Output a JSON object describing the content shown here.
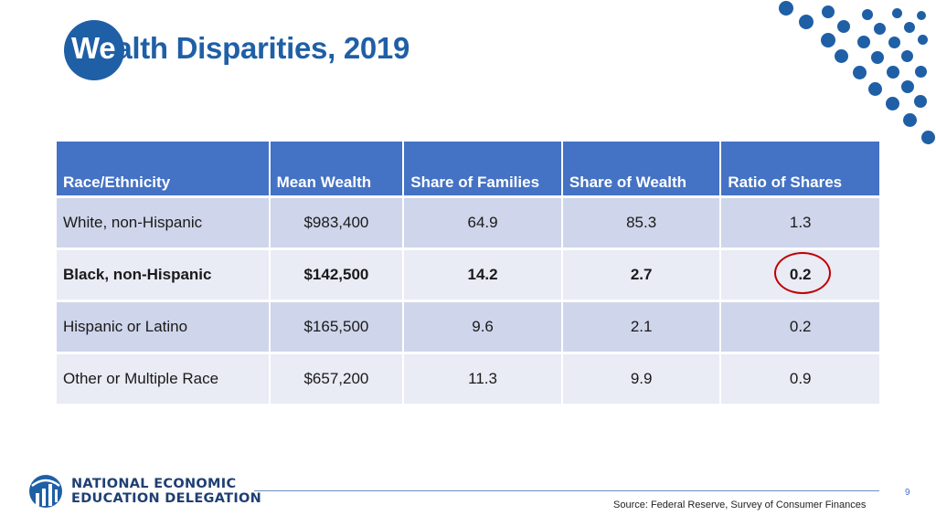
{
  "slide": {
    "title_first": "We",
    "title_rest": "alth Disparities, 2019",
    "page_number": "9",
    "source": "Source: Federal Reserve, Survey of Consumer Finances",
    "logo": {
      "line1": "NATIONAL ECONOMIC",
      "line2": "EDUCATION DELEGATION"
    }
  },
  "table": {
    "headers": [
      "Race/Ethnicity",
      "Mean Wealth",
      "Share of Families",
      "Share of Wealth",
      "Ratio of Shares"
    ],
    "rows": [
      [
        "White, non-Hispanic",
        "$983,400",
        "64.9",
        "85.3",
        "1.3"
      ],
      [
        "Black, non-Hispanic",
        "$142,500",
        "14.2",
        "2.7",
        "0.2"
      ],
      [
        "Hispanic or Latino",
        "$165,500",
        "9.6",
        "2.1",
        "0.2"
      ],
      [
        "Other or Multiple Race",
        "$657,200",
        "11.3",
        "9.9",
        "0.9"
      ]
    ],
    "highlighted_row": 1
  },
  "colors": {
    "brand_blue": "#1f5fa6",
    "header_blue": "#4472c4",
    "row_dark": "#cfd5ea",
    "row_light": "#e9ebf5",
    "highlight_ring": "#c00000"
  }
}
